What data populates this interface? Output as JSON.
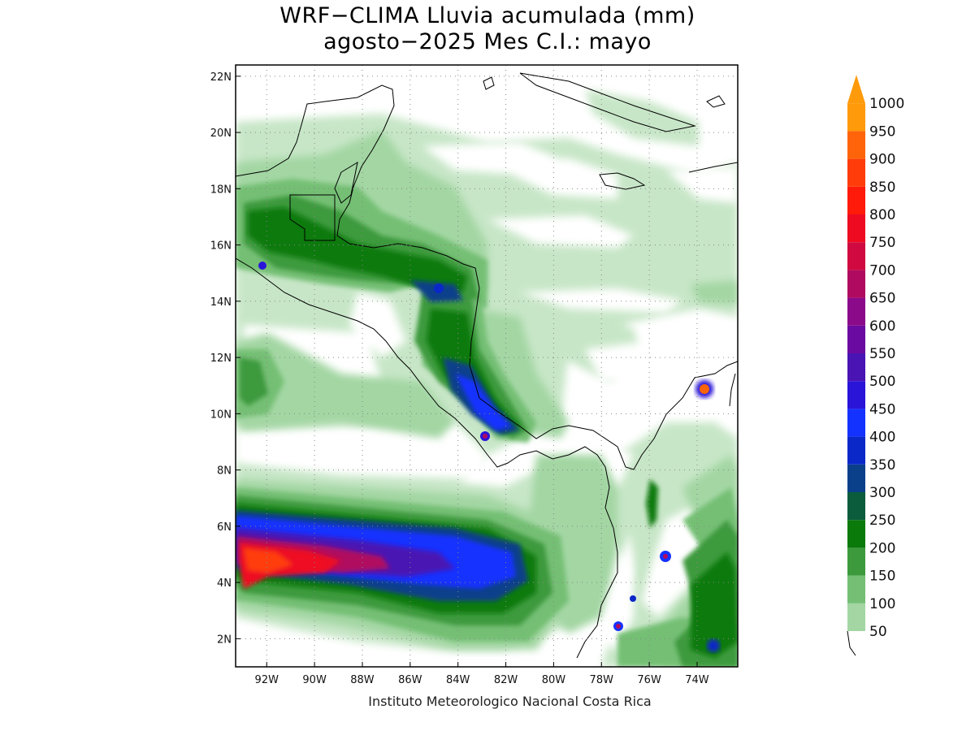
{
  "title_line1": "WRF−CLIMA Lluvia acumulada (mm)",
  "title_line2": "agosto−2025 Mes C.I.: mayo",
  "credit": "Instituto Meteorologico Nacional Costa Rica",
  "map": {
    "lat_ticks": [
      {
        "value": 2,
        "label": "2N"
      },
      {
        "value": 4,
        "label": "4N"
      },
      {
        "value": 6,
        "label": "6N"
      },
      {
        "value": 8,
        "label": "8N"
      },
      {
        "value": 10,
        "label": "10N"
      },
      {
        "value": 12,
        "label": "12N"
      },
      {
        "value": 14,
        "label": "14N"
      },
      {
        "value": 16,
        "label": "16N"
      },
      {
        "value": 18,
        "label": "18N"
      },
      {
        "value": 20,
        "label": "20N"
      },
      {
        "value": 22,
        "label": "22N"
      }
    ],
    "lon_ticks": [
      {
        "value": -92,
        "label": "92W"
      },
      {
        "value": -90,
        "label": "90W"
      },
      {
        "value": -88,
        "label": "88W"
      },
      {
        "value": -86,
        "label": "86W"
      },
      {
        "value": -84,
        "label": "84W"
      },
      {
        "value": -82,
        "label": "82W"
      },
      {
        "value": -80,
        "label": "80W"
      },
      {
        "value": -78,
        "label": "78W"
      },
      {
        "value": -76,
        "label": "76W"
      },
      {
        "value": -74,
        "label": "74W"
      }
    ],
    "lat_range": [
      1.0,
      22.4
    ],
    "lon_range": [
      -93.3,
      -72.3
    ],
    "grid": "dotted"
  },
  "colorbar": {
    "levels": [
      {
        "label": "50",
        "color": "#c7e6c7"
      },
      {
        "label": "100",
        "color": "#a3d6a3"
      },
      {
        "label": "150",
        "color": "#74bf74"
      },
      {
        "label": "200",
        "color": "#3c9a3c"
      },
      {
        "label": "250",
        "color": "#0a7a0a"
      },
      {
        "label": "300",
        "color": "#0a5c3c"
      },
      {
        "label": "350",
        "color": "#0a3f8a"
      },
      {
        "label": "400",
        "color": "#0a28c8"
      },
      {
        "label": "450",
        "color": "#1432ff"
      },
      {
        "label": "500",
        "color": "#2a14d8"
      },
      {
        "label": "550",
        "color": "#4a14b4"
      },
      {
        "label": "600",
        "color": "#6a0aa0"
      },
      {
        "label": "650",
        "color": "#8a0a8a"
      },
      {
        "label": "700",
        "color": "#b00a60"
      },
      {
        "label": "750",
        "color": "#d00a40"
      },
      {
        "label": "800",
        "color": "#ee0a20"
      },
      {
        "label": "850",
        "color": "#ff1a0a"
      },
      {
        "label": "900",
        "color": "#ff3c0a"
      },
      {
        "label": "950",
        "color": "#ff640a"
      },
      {
        "label": "1000",
        "color": "#ff9a0a"
      }
    ]
  }
}
